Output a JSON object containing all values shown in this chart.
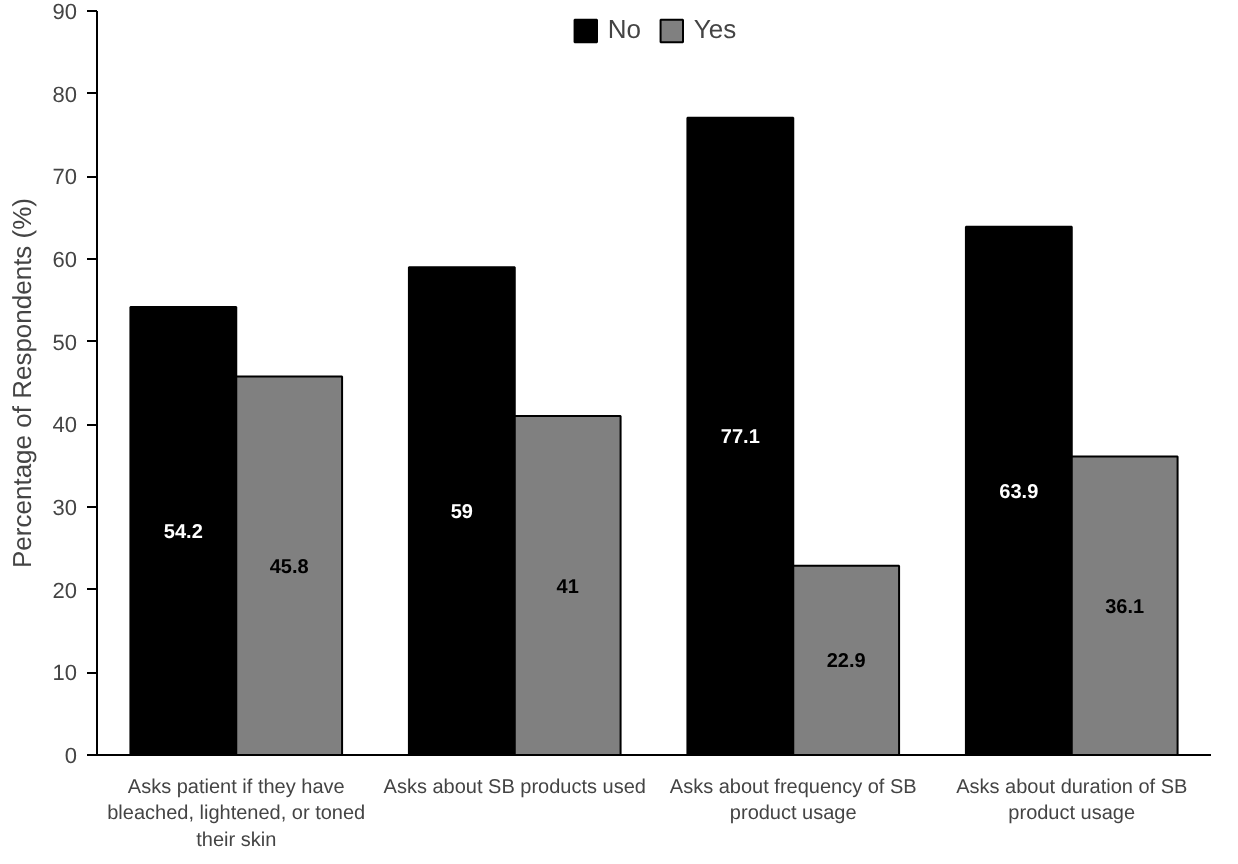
{
  "chart_data": {
    "type": "bar",
    "ylabel": "Percentage of Respondents (%)",
    "categories": [
      "Asks patient if they have bleached, lightened, or toned their skin",
      "Asks about SB products used",
      "Asks about frequency of SB product usage",
      "Asks about duration of SB product usage"
    ],
    "series": [
      {
        "name": "No",
        "color": "#000000",
        "values": [
          54.2,
          59,
          77.1,
          63.9
        ]
      },
      {
        "name": "Yes",
        "color": "#808080",
        "values": [
          45.8,
          41,
          22.9,
          36.1
        ]
      }
    ],
    "ylim": [
      0,
      90
    ],
    "yticks": [
      0,
      10,
      20,
      30,
      40,
      50,
      60,
      70,
      80,
      90
    ],
    "grid": false,
    "legend": "top",
    "data_labels": true
  }
}
